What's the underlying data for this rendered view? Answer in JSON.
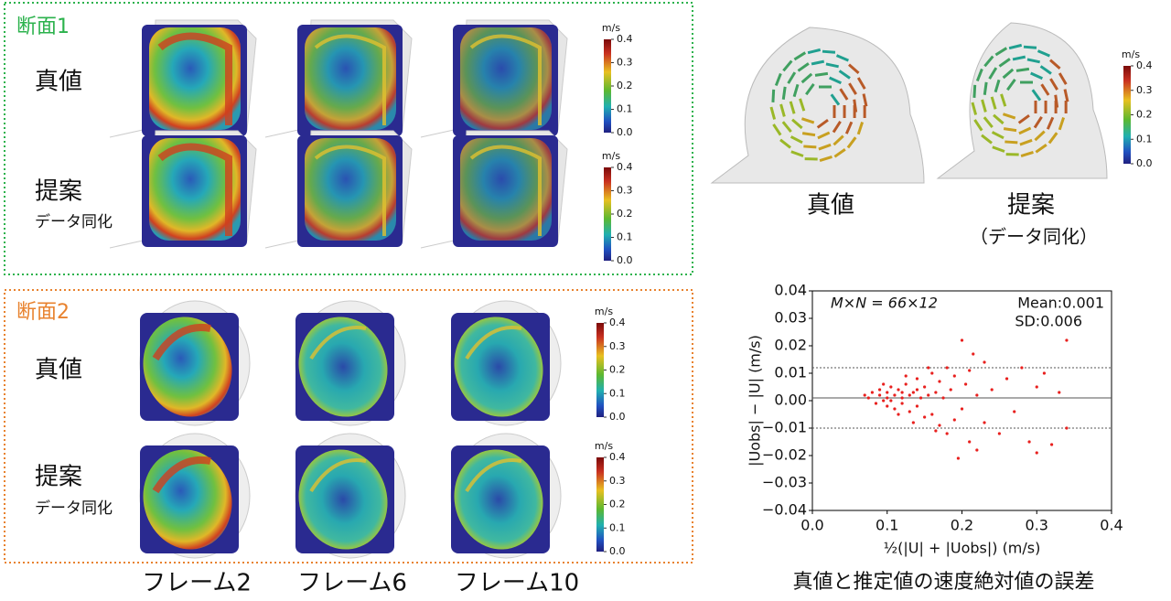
{
  "section1": {
    "label": "断面1",
    "rows": [
      "真値",
      "提案"
    ],
    "note": "データ同化"
  },
  "section2": {
    "label": "断面2",
    "rows": [
      "真値",
      "提案"
    ],
    "note": "データ同化"
  },
  "frames": [
    "フレーム2",
    "フレーム6",
    "フレーム10"
  ],
  "colorbar": {
    "unit": "m/s",
    "lim": [
      0,
      0.4
    ],
    "ticks": [
      0.4,
      0.3,
      0.2,
      0.1,
      {
        "value": 0,
        "label": "0.0"
      }
    ]
  },
  "vector_view": {
    "labels": [
      "真値",
      "提案"
    ],
    "note": "（データ同化）"
  },
  "chart_data": {
    "type": "scatter",
    "color": "#e8201e",
    "x_label": "½(|U| + |Uobs|) (m/s)",
    "y_label": "|Uobs| − |U| (m/s)",
    "annotations": [
      "M×N = 66×12",
      "Mean:0.001",
      "SD:0.006"
    ],
    "caption": "真値と推定値の速度絶対値の誤差",
    "mean_line": 0.001,
    "limit_lines": [
      0.012,
      -0.01
    ],
    "xlim": [
      0,
      0.4
    ],
    "ylim": [
      -0.04,
      0.04
    ],
    "xticks": [
      {
        "value": 0,
        "label": "0.0"
      },
      0.1,
      0.2,
      0.3,
      0.4
    ],
    "yticks": [
      0.04,
      0.03,
      0.02,
      0.01,
      {
        "value": 0,
        "label": "0.00"
      },
      {
        "value": -0.01,
        "label": "−0.01"
      },
      {
        "value": -0.02,
        "label": "−0.02"
      },
      {
        "value": -0.03,
        "label": "−0.03"
      },
      {
        "value": -0.04,
        "label": "−0.04"
      }
    ],
    "x": [
      0.07,
      0.075,
      0.08,
      0.085,
      0.09,
      0.09,
      0.095,
      0.1,
      0.1,
      0.1,
      0.105,
      0.11,
      0.11,
      0.115,
      0.12,
      0.12,
      0.125,
      0.13,
      0.13,
      0.135,
      0.14,
      0.14,
      0.145,
      0.15,
      0.15,
      0.155,
      0.16,
      0.16,
      0.165,
      0.17,
      0.17,
      0.175,
      0.18,
      0.18,
      0.185,
      0.19,
      0.19,
      0.2,
      0.2,
      0.205,
      0.21,
      0.21,
      0.22,
      0.22,
      0.23,
      0.23,
      0.24,
      0.25,
      0.26,
      0.27,
      0.28,
      0.29,
      0.3,
      0.3,
      0.31,
      0.32,
      0.33,
      0.34,
      0.34,
      0.095,
      0.115,
      0.125,
      0.14,
      0.165,
      0.195,
      0.215,
      0.12,
      0.105,
      0.135,
      0.155
    ],
    "values": [
      0.002,
      0.001,
      0.003,
      -0.001,
      0.002,
      0.004,
      0,
      0.003,
      -0.002,
      0.001,
      0.005,
      0.002,
      -0.003,
      0.004,
      0.001,
      -0.001,
      0.006,
      0.002,
      -0.004,
      0.003,
      0.008,
      -0.002,
      0.001,
      0.005,
      -0.006,
      0.002,
      0.01,
      -0.005,
      0.003,
      -0.009,
      0.007,
      0.001,
      0.012,
      -0.012,
      0.004,
      -0.007,
      0.009,
      0.022,
      -0.003,
      0.006,
      -0.015,
      0.011,
      0.002,
      -0.018,
      0.014,
      -0.008,
      0.004,
      -0.012,
      0.008,
      -0.004,
      0.012,
      -0.015,
      0.005,
      -0.019,
      0.01,
      -0.016,
      0.003,
      0.022,
      -0.01,
      0.006,
      -0.005,
      0.009,
      0.004,
      -0.011,
      -0.021,
      0.017,
      0.003,
      0,
      -0.008,
      0.012
    ]
  }
}
